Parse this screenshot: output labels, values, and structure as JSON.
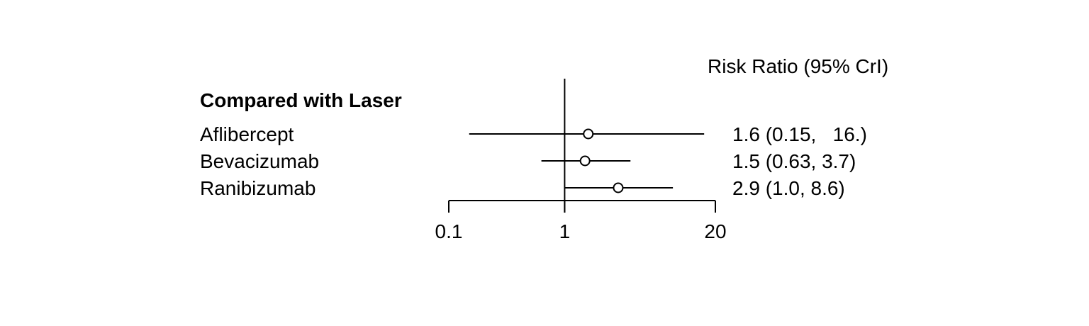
{
  "chart_data": {
    "type": "forest",
    "column_header": "Risk Ratio (95% CrI)",
    "group_header": "Compared with Laser",
    "scale": "log",
    "xlim": [
      0.1,
      20
    ],
    "reference_line": 1,
    "x_ticks": [
      {
        "value": 0.1,
        "label": "0.1"
      },
      {
        "value": 1,
        "label": "1"
      },
      {
        "value": 20,
        "label": "20"
      }
    ],
    "rows": [
      {
        "label": "Aflibercept",
        "estimate": 1.6,
        "lower": 0.15,
        "upper": 16.0,
        "text": "1.6 (0.15,   16.)"
      },
      {
        "label": "Bevacizumab",
        "estimate": 1.5,
        "lower": 0.63,
        "upper": 3.7,
        "text": "1.5 (0.63, 3.7)"
      },
      {
        "label": "Ranibizumab",
        "estimate": 2.9,
        "lower": 1.0,
        "upper": 8.6,
        "text": "2.9 (1.0, 8.6)"
      }
    ]
  }
}
